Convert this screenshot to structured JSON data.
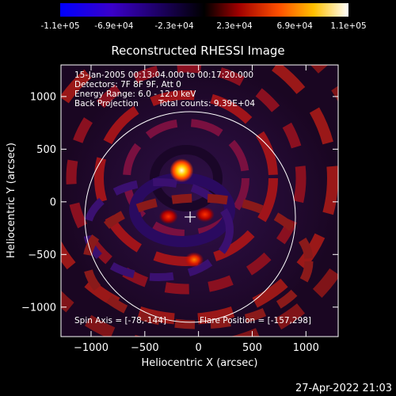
{
  "colorbar": {
    "tick_labels": [
      "-1.1e+05",
      "-6.9e+04",
      "-2.3e+04",
      "2.3e+04",
      "6.9e+04",
      "1.1e+05"
    ],
    "range": [
      -110000,
      110000
    ],
    "colors": [
      "#0000ff",
      "#3a00c8",
      "#000000",
      "#a00000",
      "#ff5000",
      "#ffc000",
      "#ffffff"
    ]
  },
  "title": "Reconstructed RHESSI Image",
  "annotations": {
    "line1": "15-Jan-2005 00:13:04.000 to 00:17:20.000",
    "line2": "Detectors: 7F 8F 9F, Att 0",
    "line3": "Energy Range: 6.0 - 12.0 keV",
    "line4_left": "Back Projection",
    "line4_right": "Total counts: 9.39E+04",
    "spin_axis": "Spin Axis = [-78,-144]",
    "flare_position": "Flare Position = [-157,298]"
  },
  "footer_timestamp": "27-Apr-2022 21:03",
  "chart_data": {
    "type": "heatmap",
    "title": "Reconstructed RHESSI Image",
    "xlabel": "Heliocentric X (arcsec)",
    "ylabel": "Heliocentric Y (arcsec)",
    "xlim": [
      -1280,
      1300
    ],
    "ylim": [
      -1280,
      1300
    ],
    "xticks": [
      -1000,
      -500,
      0,
      500,
      1000
    ],
    "xtick_labels": [
      "−1000",
      "−500",
      "0",
      "500",
      "1000"
    ],
    "yticks": [
      -1000,
      -500,
      0,
      500,
      1000
    ],
    "ytick_labels": [
      "−1000",
      "−500",
      "0",
      "500",
      "1000"
    ],
    "colormap": "blue-black-red-yellow-white",
    "sources": [
      {
        "x": -157,
        "y": 298,
        "intensity": 110000
      },
      {
        "x": -40,
        "y": -550,
        "intensity": 60000
      },
      {
        "x": -280,
        "y": -140,
        "intensity": 45000
      },
      {
        "x": 60,
        "y": -120,
        "intensity": 45000
      }
    ],
    "solar_disk": {
      "center": [
        -78,
        -144
      ],
      "radius": 980
    },
    "spin_axis_marker": [
      -78,
      -144
    ]
  }
}
